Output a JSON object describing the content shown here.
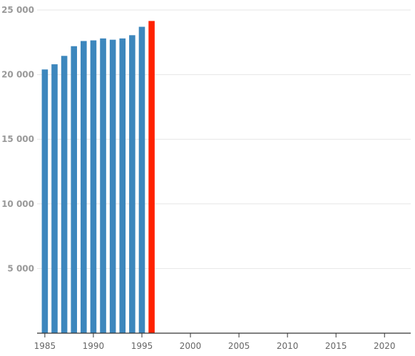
{
  "chart_data": {
    "type": "bar",
    "title": "",
    "xlabel": "",
    "ylabel": "",
    "x": [
      1985,
      1986,
      1987,
      1988,
      1989,
      1990,
      1991,
      1992,
      1993,
      1994,
      1995,
      1996
    ],
    "values": [
      20400,
      20800,
      21450,
      22200,
      22600,
      22650,
      22800,
      22700,
      22800,
      23050,
      23700,
      24150
    ],
    "highlight_x": 1996,
    "xlim": [
      1984.2,
      2022.7
    ],
    "ylim": [
      0,
      25000
    ],
    "y_ticks": [
      5000,
      10000,
      15000,
      20000,
      25000
    ],
    "y_tick_labels": [
      "5 000",
      "10 000",
      "15 000",
      "20 000",
      "25 000"
    ],
    "x_ticks": [
      1985,
      1990,
      1995,
      2000,
      2005,
      2010,
      2015,
      2020
    ],
    "x_tick_labels": [
      "1985",
      "1990",
      "1995",
      "2000",
      "2005",
      "2010",
      "2015",
      "2020"
    ],
    "grid": true,
    "legend": "none",
    "colors": {
      "bar": "#3d87bd",
      "highlight": "#ff2200",
      "grid": "#e6e6e6",
      "axis": "#333333"
    }
  }
}
